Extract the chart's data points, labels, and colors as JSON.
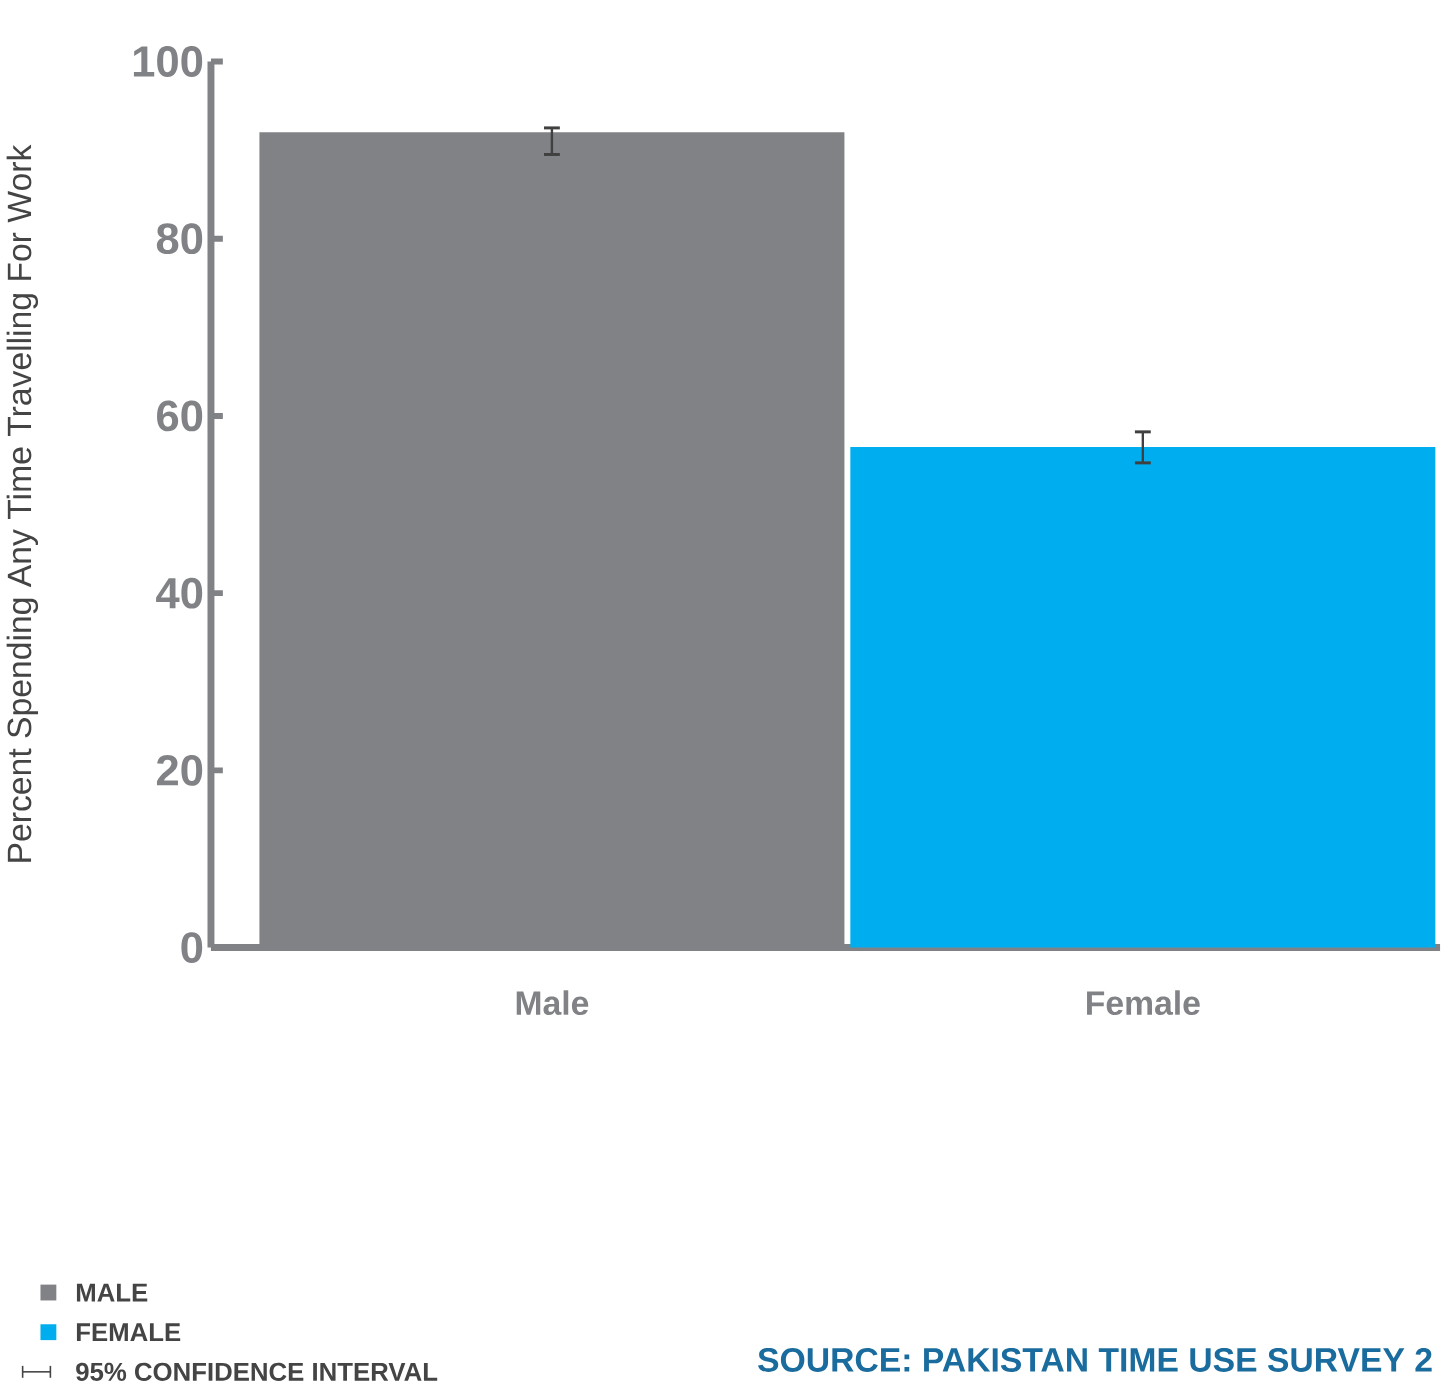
{
  "chart_data": {
    "type": "bar",
    "ylabel": "Percent Spending Any Time Travelling For Work",
    "categories": [
      "Male",
      "Female"
    ],
    "series": [
      {
        "name": "MALE",
        "color": "#808285",
        "values": [
          92,
          null
        ],
        "errors": [
          [
            89.5,
            92.5
          ],
          null
        ]
      },
      {
        "name": "FEMALE",
        "color": "#00aeef",
        "values": [
          null,
          56.5
        ],
        "errors": [
          null,
          [
            54.7,
            58.2
          ]
        ]
      }
    ],
    "ylim": [
      0,
      100
    ],
    "yticks": [
      0,
      20,
      40,
      60,
      80,
      100
    ],
    "legend": "bottom left",
    "grid": false,
    "annotations": [
      "95% CONFIDENCE INTERVAL",
      "SOURCE: PAKISTAN TIME USE SURVEY 2"
    ]
  }
}
